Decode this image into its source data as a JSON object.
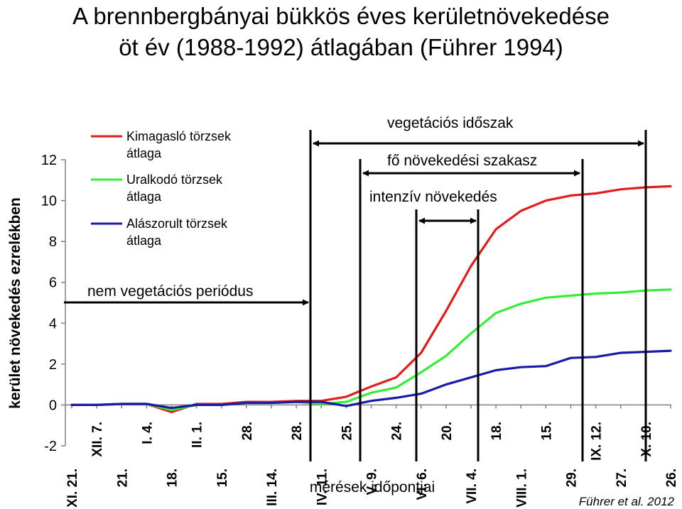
{
  "chart_data": {
    "type": "line",
    "title": [
      "A brennbergbányai bükkös éves kerületnövekedése",
      "öt év (1988-1992) átlagában (Führer 1994)"
    ],
    "ylabel": "kerület növekedés ezrelékben",
    "xlabel": "mérések időpontjai",
    "ylim": [
      -2,
      12
    ],
    "yticks": [
      -2,
      0,
      2,
      4,
      6,
      8,
      10,
      12
    ],
    "x": [
      "XI. 21.",
      "XII. 7.",
      "21.",
      "I. 4.",
      "18.",
      "II. 1.",
      "15.",
      "28.",
      "III. 14.",
      "28.",
      "IV. 11.",
      "25.",
      "V. 9.",
      "24.",
      "VI. 6.",
      "20.",
      "VII. 4.",
      "18.",
      "VIII. 1.",
      "15.",
      "29.",
      "IX. 12.",
      "27.",
      "X. 10.",
      "26."
    ],
    "series": [
      {
        "name": "Kimagasló törzsek átlaga",
        "color": "#e31b1b",
        "values": [
          0,
          0,
          0.05,
          0.05,
          -0.35,
          0.05,
          0.05,
          0.15,
          0.15,
          0.2,
          0.2,
          0.4,
          0.9,
          1.35,
          2.55,
          4.6,
          6.8,
          8.6,
          9.5,
          10.0,
          10.25,
          10.35,
          10.55,
          10.65,
          10.7
        ]
      },
      {
        "name": "Uralkodó törzsek átlaga",
        "color": "#33ee33",
        "values": [
          0,
          0,
          0.05,
          0.05,
          -0.25,
          0,
          0,
          0.1,
          0.1,
          0.15,
          0.05,
          0.15,
          0.6,
          0.85,
          1.6,
          2.4,
          3.5,
          4.5,
          4.95,
          5.25,
          5.35,
          5.45,
          5.5,
          5.6,
          5.65
        ]
      },
      {
        "name": "Alászorult törzsek átlaga",
        "color": "#1a1aa8",
        "values": [
          0,
          0,
          0.05,
          0.05,
          -0.15,
          0,
          0,
          0.1,
          0.1,
          0.15,
          0.15,
          -0.05,
          0.2,
          0.35,
          0.55,
          1.0,
          1.35,
          1.7,
          1.85,
          1.9,
          2.3,
          2.35,
          2.55,
          2.6,
          2.65
        ]
      }
    ],
    "annotations": {
      "non_vegetation": "nem vegetációs periódus",
      "vegetation": "vegetációs időszak",
      "main_growth": "fő növekedési szakasz",
      "intensive": "intenzív növekedés"
    },
    "legend_placement": "top-left",
    "grid": false,
    "citation": "Führer et al. 2012"
  },
  "colors": {
    "axis": "#808080",
    "text": "#000000",
    "background": "#ffffff"
  }
}
